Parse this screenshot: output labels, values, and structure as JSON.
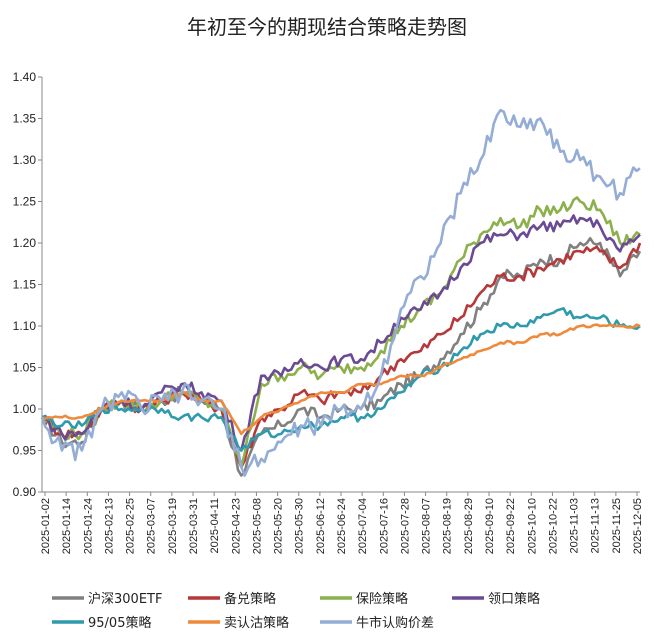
{
  "chart_data": {
    "type": "line",
    "title": "年初至今的期现结合策略走势图",
    "xlabel": "",
    "ylabel": "",
    "ylim": [
      0.9,
      1.4
    ],
    "yticks": [
      "0.90",
      "0.95",
      "1.00",
      "1.05",
      "1.10",
      "1.15",
      "1.20",
      "1.25",
      "1.30",
      "1.35",
      "1.40"
    ],
    "x_ticks": [
      "2025-01-02",
      "2025-01-14",
      "2025-01-24",
      "2025-02-13",
      "2025-02-25",
      "2025-03-07",
      "2025-03-19",
      "2025-03-31",
      "2025-04-11",
      "2025-04-23",
      "2025-05-08",
      "2025-05-20",
      "2025-05-30",
      "2025-06-12",
      "2025-06-24",
      "2025-07-04",
      "2025-07-16",
      "2025-07-28",
      "2025-08-07",
      "2025-08-19",
      "2025-08-29",
      "2025-09-10",
      "2025-09-22",
      "2025-10-10",
      "2025-10-22",
      "2025-11-03",
      "2025-11-13",
      "2025-11-25",
      "2025-12-05"
    ],
    "grid": false,
    "legend_position": "bottom",
    "colors": {
      "沪深300ETF": "#808080",
      "备兑策略": "#b5383a",
      "保险策略": "#8cb04b",
      "领口策略": "#6b4a94",
      "95/05策略": "#2f9aad",
      "卖认沽策略": "#ee8a3b",
      "牛市认购价差": "#94add6"
    },
    "series": [
      {
        "name": "沪深300ETF",
        "values": [
          0.99,
          0.96,
          0.96,
          1.0,
          1.01,
          1.0,
          1.01,
          1.02,
          1.01,
          1.0,
          0.92,
          0.97,
          0.98,
          1.0,
          0.99,
          1.0,
          1.0,
          1.01,
          1.03,
          1.04,
          1.06,
          1.09,
          1.12,
          1.16,
          1.16,
          1.18,
          1.18,
          1.2,
          1.2,
          1.16,
          1.19
        ]
      },
      {
        "name": "备兑策略",
        "values": [
          0.99,
          0.97,
          0.97,
          1.0,
          1.01,
          1.0,
          1.01,
          1.02,
          1.01,
          1.0,
          0.93,
          0.99,
          1.0,
          1.02,
          1.01,
          1.02,
          1.02,
          1.04,
          1.06,
          1.07,
          1.09,
          1.11,
          1.14,
          1.16,
          1.16,
          1.17,
          1.18,
          1.19,
          1.19,
          1.17,
          1.2
        ]
      },
      {
        "name": "保险策略",
        "values": [
          0.99,
          0.97,
          0.97,
          1.0,
          1.01,
          1.0,
          1.01,
          1.02,
          1.01,
          1.0,
          0.93,
          1.03,
          1.04,
          1.05,
          1.04,
          1.05,
          1.05,
          1.07,
          1.1,
          1.12,
          1.14,
          1.18,
          1.21,
          1.23,
          1.22,
          1.24,
          1.24,
          1.25,
          1.24,
          1.2,
          1.21
        ]
      },
      {
        "name": "领口策略",
        "values": [
          0.99,
          0.97,
          0.97,
          1.0,
          1.01,
          1.0,
          1.02,
          1.03,
          1.02,
          1.01,
          0.95,
          1.04,
          1.04,
          1.06,
          1.05,
          1.06,
          1.06,
          1.08,
          1.11,
          1.12,
          1.14,
          1.17,
          1.2,
          1.21,
          1.21,
          1.22,
          1.22,
          1.23,
          1.22,
          1.19,
          1.21
        ]
      },
      {
        "name": "95/05策略",
        "values": [
          0.99,
          0.98,
          0.98,
          1.0,
          1.0,
          1.0,
          1.0,
          0.99,
          0.99,
          0.99,
          0.95,
          0.97,
          0.97,
          0.98,
          0.98,
          0.99,
          0.99,
          1.0,
          1.02,
          1.04,
          1.05,
          1.07,
          1.09,
          1.1,
          1.1,
          1.11,
          1.12,
          1.11,
          1.11,
          1.1,
          1.1
        ]
      },
      {
        "name": "卖认沽策略",
        "values": [
          0.99,
          0.99,
          0.99,
          1.0,
          1.01,
          1.01,
          1.01,
          1.02,
          1.01,
          1.01,
          0.97,
          0.99,
          1.0,
          1.01,
          1.02,
          1.02,
          1.03,
          1.03,
          1.04,
          1.04,
          1.05,
          1.06,
          1.07,
          1.08,
          1.08,
          1.09,
          1.09,
          1.1,
          1.1,
          1.1,
          1.1
        ]
      },
      {
        "name": "牛市认购价差",
        "values": [
          0.99,
          0.95,
          0.95,
          1.0,
          1.02,
          1.0,
          1.01,
          1.02,
          1.01,
          1.0,
          0.93,
          0.94,
          0.96,
          0.98,
          0.98,
          1.0,
          1.0,
          1.04,
          1.12,
          1.16,
          1.2,
          1.26,
          1.3,
          1.36,
          1.34,
          1.35,
          1.31,
          1.3,
          1.28,
          1.26,
          1.29
        ]
      }
    ]
  }
}
